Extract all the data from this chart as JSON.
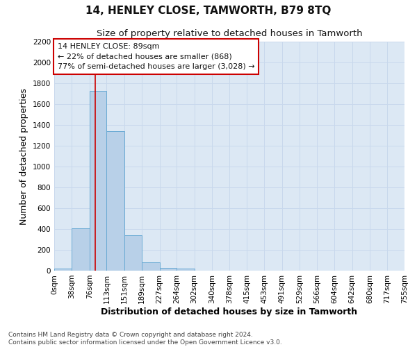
{
  "title": "14, HENLEY CLOSE, TAMWORTH, B79 8TQ",
  "subtitle": "Size of property relative to detached houses in Tamworth",
  "xlabel": "Distribution of detached houses by size in Tamworth",
  "ylabel": "Number of detached properties",
  "bar_edges": [
    0,
    38,
    76,
    113,
    151,
    189,
    227,
    264,
    302,
    340,
    378,
    415,
    453,
    491,
    529,
    566,
    604,
    642,
    680,
    717,
    755
  ],
  "bar_heights": [
    20,
    410,
    1730,
    1340,
    340,
    80,
    30,
    20,
    0,
    0,
    0,
    0,
    0,
    0,
    0,
    0,
    0,
    0,
    0,
    0
  ],
  "bar_color": "#b8d0e8",
  "bar_edge_color": "#6aaad4",
  "grid_color": "#c8d8ec",
  "background_color": "#dce8f4",
  "red_line_x": 89,
  "annotation_text": "14 HENLEY CLOSE: 89sqm\n← 22% of detached houses are smaller (868)\n77% of semi-detached houses are larger (3,028) →",
  "annotation_box_color": "#ffffff",
  "annotation_box_edge": "#cc0000",
  "ylim": [
    0,
    2200
  ],
  "yticks": [
    0,
    200,
    400,
    600,
    800,
    1000,
    1200,
    1400,
    1600,
    1800,
    2000,
    2200
  ],
  "xtick_labels": [
    "0sqm",
    "38sqm",
    "76sqm",
    "113sqm",
    "151sqm",
    "189sqm",
    "227sqm",
    "264sqm",
    "302sqm",
    "340sqm",
    "378sqm",
    "415sqm",
    "453sqm",
    "491sqm",
    "529sqm",
    "566sqm",
    "604sqm",
    "642sqm",
    "680sqm",
    "717sqm",
    "755sqm"
  ],
  "footer_text": "Contains HM Land Registry data © Crown copyright and database right 2024.\nContains public sector information licensed under the Open Government Licence v3.0.",
  "title_fontsize": 11,
  "subtitle_fontsize": 9.5,
  "axis_label_fontsize": 9,
  "tick_fontsize": 7.5,
  "annotation_fontsize": 8,
  "footer_fontsize": 6.5
}
